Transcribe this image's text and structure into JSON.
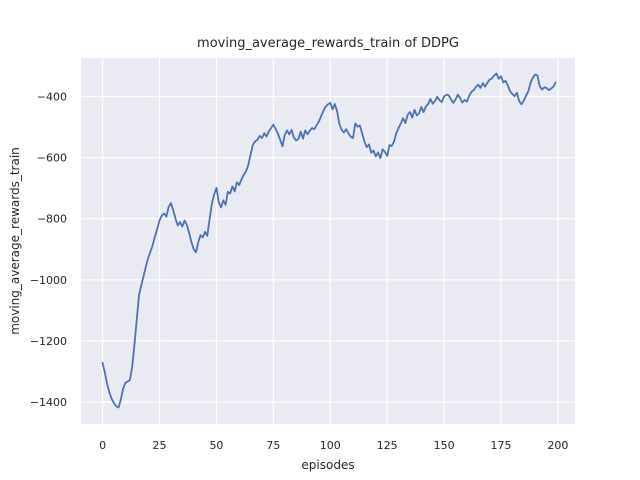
{
  "chart_data": {
    "type": "line",
    "title": "moving_average_rewards_train of DDPG",
    "xlabel": "episodes",
    "ylabel": "moving_average_rewards_train",
    "xlim": [
      -9.5,
      207.5
    ],
    "ylim": [
      -1472,
      -274
    ],
    "xticks": [
      0,
      25,
      50,
      75,
      100,
      125,
      150,
      175,
      200
    ],
    "yticks": [
      -1400,
      -1200,
      -1000,
      -800,
      -600,
      -400
    ],
    "grid": true,
    "legend": false,
    "plot_bg_color": "#eaeaf2",
    "grid_color": "#ffffff",
    "line_color": "#4c72b0",
    "text_color": "#262626",
    "series": [
      {
        "name": "moving_average_rewards_train",
        "x_start": 0,
        "x_step": 1,
        "y": [
          -1272,
          -1305,
          -1342,
          -1370,
          -1390,
          -1404,
          -1414,
          -1418,
          -1392,
          -1357,
          -1337,
          -1333,
          -1328,
          -1285,
          -1210,
          -1128,
          -1048,
          -1018,
          -988,
          -956,
          -928,
          -908,
          -886,
          -858,
          -833,
          -806,
          -790,
          -783,
          -793,
          -762,
          -749,
          -772,
          -800,
          -822,
          -811,
          -826,
          -806,
          -821,
          -846,
          -876,
          -900,
          -910,
          -878,
          -854,
          -861,
          -843,
          -856,
          -802,
          -750,
          -720,
          -699,
          -745,
          -763,
          -740,
          -755,
          -712,
          -718,
          -694,
          -711,
          -681,
          -690,
          -671,
          -656,
          -645,
          -624,
          -590,
          -558,
          -547,
          -542,
          -529,
          -536,
          -520,
          -531,
          -514,
          -503,
          -492,
          -506,
          -521,
          -542,
          -563,
          -526,
          -511,
          -524,
          -509,
          -535,
          -544,
          -539,
          -515,
          -538,
          -511,
          -524,
          -512,
          -503,
          -507,
          -494,
          -482,
          -464,
          -447,
          -433,
          -426,
          -421,
          -442,
          -425,
          -448,
          -490,
          -509,
          -518,
          -507,
          -521,
          -532,
          -536,
          -488,
          -499,
          -495,
          -520,
          -547,
          -566,
          -557,
          -584,
          -577,
          -596,
          -583,
          -602,
          -573,
          -581,
          -594,
          -559,
          -562,
          -548,
          -520,
          -503,
          -488,
          -471,
          -487,
          -460,
          -451,
          -469,
          -444,
          -462,
          -455,
          -434,
          -451,
          -432,
          -425,
          -408,
          -424,
          -415,
          -401,
          -412,
          -418,
          -400,
          -394,
          -396,
          -409,
          -421,
          -410,
          -394,
          -404,
          -420,
          -411,
          -417,
          -398,
          -385,
          -379,
          -368,
          -361,
          -372,
          -356,
          -368,
          -355,
          -345,
          -341,
          -331,
          -325,
          -342,
          -334,
          -354,
          -349,
          -364,
          -383,
          -392,
          -399,
          -388,
          -415,
          -426,
          -413,
          -397,
          -383,
          -355,
          -338,
          -328,
          -331,
          -366,
          -377,
          -370,
          -372,
          -379,
          -374,
          -368,
          -354
        ]
      }
    ]
  }
}
